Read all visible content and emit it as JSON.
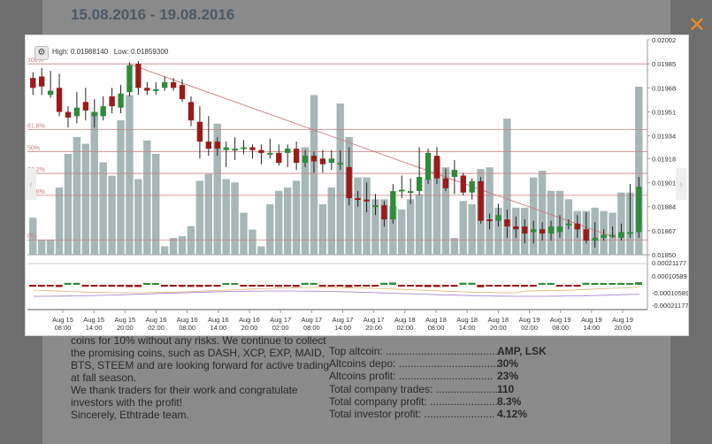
{
  "header": {
    "date_range": "15.08.2016 - 19.08.2016"
  },
  "close_icon": "✕",
  "chart": {
    "gear_icon": "⚙",
    "high_label": "High: 0.01988140",
    "low_label": "Low: 0.01859300",
    "fib_labels": [
      "100%",
      "61.8%",
      "50%",
      "38.2%",
      "23.6%",
      "0%"
    ],
    "fib_values": [
      0.01985,
      0.019385,
      0.01923,
      0.019075,
      0.01892,
      0.018605
    ],
    "prev_icon": "‹",
    "next_icon": "›"
  },
  "chart_data": {
    "type": "candlestick",
    "ylim": [
      0.0185,
      0.02002
    ],
    "price_ticks": [
      "0.02002",
      "0.01985",
      "0.01968",
      "0.01951",
      "0.01934",
      "0.01918",
      "0.01901",
      "0.01884",
      "0.01867",
      "0.01850"
    ],
    "indicator_ticks": [
      "0.00021177",
      "0.00010589",
      "-0.00010589",
      "-0.00021177"
    ],
    "x_ticks": [
      [
        "Aug 15",
        "08:00"
      ],
      [
        "Aug 15",
        "14:00"
      ],
      [
        "Aug 15",
        "20:00"
      ],
      [
        "Aug 16",
        "02:00"
      ],
      [
        "Aug 16",
        "08:00"
      ],
      [
        "Aug 16",
        "14:00"
      ],
      [
        "Aug 16",
        "20:00"
      ],
      [
        "Aug 17",
        "02:00"
      ],
      [
        "Aug 17",
        "08:00"
      ],
      [
        "Aug 17",
        "14:00"
      ],
      [
        "Aug 17",
        "20:00"
      ],
      [
        "Aug 18",
        "02:00"
      ],
      [
        "Aug 18",
        "08:00"
      ],
      [
        "Aug 18",
        "14:00"
      ],
      [
        "Aug 18",
        "20:00"
      ],
      [
        "Aug 19",
        "02:00"
      ],
      [
        "Aug 19",
        "08:00"
      ],
      [
        "Aug 19",
        "14:00"
      ],
      [
        "Aug 19",
        "20:00"
      ]
    ],
    "volumes": [
      0.22,
      0.09,
      0.09,
      0.4,
      0.6,
      0.7,
      0.66,
      0.85,
      0.55,
      0.47,
      0.8,
      0.95,
      0.45,
      0.68,
      0.6,
      0.05,
      0.1,
      0.11,
      0.17,
      0.44,
      0.48,
      0.78,
      0.45,
      0.43,
      0.25,
      0.15,
      0.05,
      0.3,
      0.38,
      0.4,
      0.44,
      0.64,
      0.95,
      0.3,
      0.4,
      0.9,
      0.7,
      0.46,
      0.46,
      0.33,
      0.33,
      0.29,
      0.27,
      0.33,
      0.36,
      0.45,
      0.57,
      0.52,
      0.1,
      0.32,
      0.3,
      0.51,
      0.52,
      0.28,
      0.81,
      0.28,
      0.28,
      0.46,
      0.5,
      0.38,
      0.38,
      0.33,
      0.26,
      0.26,
      0.28,
      0.26,
      0.25,
      0.37,
      0.37,
      1.0
    ],
    "candles": [
      [
        0.01975,
        0.01968,
        0.01979,
        0.01963
      ],
      [
        0.01976,
        0.01969,
        0.01982,
        0.01963
      ],
      [
        0.01963,
        0.01966,
        0.0198,
        0.01961
      ],
      [
        0.01968,
        0.01951,
        0.01978,
        0.01948
      ],
      [
        0.01951,
        0.01947,
        0.01955,
        0.0194
      ],
      [
        0.01948,
        0.01954,
        0.01965,
        0.01943
      ],
      [
        0.01958,
        0.01952,
        0.01968,
        0.01945
      ],
      [
        0.01948,
        0.01951,
        0.0196,
        0.0194
      ],
      [
        0.01948,
        0.01955,
        0.01962,
        0.01945
      ],
      [
        0.01962,
        0.01955,
        0.01968,
        0.0195
      ],
      [
        0.01954,
        0.01964,
        0.0197,
        0.0195
      ],
      [
        0.01965,
        0.01984,
        0.01986,
        0.01962
      ],
      [
        0.01985,
        0.01968,
        0.01987,
        0.01963
      ],
      [
        0.01968,
        0.01966,
        0.01972,
        0.01963
      ],
      [
        0.01966,
        0.01967,
        0.01972,
        0.01963
      ],
      [
        0.01968,
        0.01972,
        0.01976,
        0.01966
      ],
      [
        0.01972,
        0.01968,
        0.01975,
        0.01966
      ],
      [
        0.0197,
        0.0196,
        0.01974,
        0.01958
      ],
      [
        0.01958,
        0.01945,
        0.01962,
        0.01941
      ],
      [
        0.01944,
        0.0193,
        0.01955,
        0.01918
      ],
      [
        0.0193,
        0.01925,
        0.01948,
        0.0192
      ],
      [
        0.0193,
        0.01925,
        0.01933,
        0.0192
      ],
      [
        0.01924,
        0.01926,
        0.0193,
        0.01912
      ],
      [
        0.01925,
        0.01925,
        0.01933,
        0.01917
      ],
      [
        0.01926,
        0.01926,
        0.01931,
        0.01921
      ],
      [
        0.01926,
        0.01924,
        0.01928,
        0.01918
      ],
      [
        0.01924,
        0.01922,
        0.01928,
        0.01914
      ],
      [
        0.01922,
        0.01922,
        0.01932,
        0.01918
      ],
      [
        0.01922,
        0.01915,
        0.01928,
        0.01913
      ],
      [
        0.01922,
        0.01925,
        0.01928,
        0.01912
      ],
      [
        0.01925,
        0.01915,
        0.0193,
        0.0191
      ],
      [
        0.01915,
        0.0192,
        0.01924,
        0.01912
      ],
      [
        0.0192,
        0.01916,
        0.01923,
        0.01908
      ],
      [
        0.01918,
        0.01914,
        0.01924,
        0.01908
      ],
      [
        0.01915,
        0.01918,
        0.01924,
        0.0191
      ],
      [
        0.01914,
        0.01915,
        0.01924,
        0.0191
      ],
      [
        0.01912,
        0.0189,
        0.01926,
        0.01885
      ],
      [
        0.0189,
        0.01889,
        0.01895,
        0.01884
      ],
      [
        0.01889,
        0.01888,
        0.01901,
        0.0188
      ],
      [
        0.01884,
        0.01885,
        0.01893,
        0.01878
      ],
      [
        0.01885,
        0.01875,
        0.01888,
        0.0187
      ],
      [
        0.01875,
        0.01895,
        0.019,
        0.01872
      ],
      [
        0.01895,
        0.01896,
        0.01906,
        0.0189
      ],
      [
        0.01895,
        0.01895,
        0.01904,
        0.01886
      ],
      [
        0.01895,
        0.01905,
        0.01926,
        0.01892
      ],
      [
        0.01903,
        0.01922,
        0.01925,
        0.019
      ],
      [
        0.0192,
        0.01904,
        0.01926,
        0.019
      ],
      [
        0.01904,
        0.01897,
        0.01911,
        0.01895
      ],
      [
        0.01905,
        0.0191,
        0.01917,
        0.01893
      ],
      [
        0.01906,
        0.01894,
        0.01908,
        0.01892
      ],
      [
        0.01894,
        0.01902,
        0.01904,
        0.01889
      ],
      [
        0.01902,
        0.01874,
        0.01905,
        0.01872
      ],
      [
        0.01875,
        0.01874,
        0.01879,
        0.01868
      ],
      [
        0.01874,
        0.01878,
        0.01886,
        0.0187
      ],
      [
        0.01875,
        0.0187,
        0.01882,
        0.01862
      ],
      [
        0.0187,
        0.01868,
        0.01877,
        0.01862
      ],
      [
        0.0187,
        0.01865,
        0.01875,
        0.01858
      ],
      [
        0.01866,
        0.01868,
        0.01874,
        0.01858
      ],
      [
        0.01868,
        0.01865,
        0.01873,
        0.0186
      ],
      [
        0.01865,
        0.0187,
        0.01874,
        0.0186
      ],
      [
        0.01866,
        0.0187,
        0.01878,
        0.01862
      ],
      [
        0.01871,
        0.01872,
        0.01875,
        0.01868
      ],
      [
        0.01872,
        0.01868,
        0.01878,
        0.01862
      ],
      [
        0.01868,
        0.0186,
        0.0188,
        0.01858
      ],
      [
        0.0186,
        0.01862,
        0.01873,
        0.01855
      ],
      [
        0.01862,
        0.01864,
        0.01868,
        0.0186
      ],
      [
        0.01864,
        0.01864,
        0.0187,
        0.01862
      ],
      [
        0.01862,
        0.01866,
        0.01872,
        0.0186
      ],
      [
        0.01866,
        0.01866,
        0.019,
        0.01862
      ],
      [
        0.01866,
        0.01898,
        0.01905,
        0.01862
      ]
    ]
  },
  "text": {
    "lines": [
      "coins for 10% without any risks. We continue to collect",
      "the promising coins, such as DASH, XCP, EXP, MAID,",
      "BTS, STEEM and are looking forward for active trading",
      "at fall season.",
      "We thank traders for their work and congratulate",
      "investors with the profit!",
      "Sincerely, Ethtrade team."
    ]
  },
  "stats": [
    {
      "label": "Top altcoin: ........................................",
      "value": "AMP, LSK"
    },
    {
      "label": "Altcoins depo: ..................................",
      "value": "30%"
    },
    {
      "label": "Altcoins profit: ................................",
      "value": "23%"
    },
    {
      "label": "Total company trades: ......................",
      "value": "110"
    },
    {
      "label": "Total company profit: ........................",
      "value": "8.3%"
    },
    {
      "label": "Total investor profit: ........................",
      "value": "4.12%"
    }
  ],
  "colors": {
    "bull": "#2e8b3a",
    "bear": "#9b1b1b",
    "volume": "#a7b7b7",
    "fib": "#c98080",
    "accent": "#f08a24"
  }
}
